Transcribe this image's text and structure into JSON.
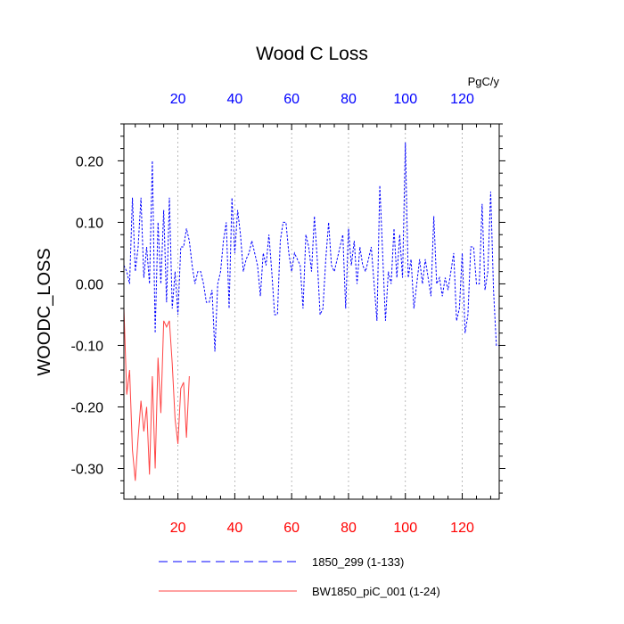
{
  "chart_data": {
    "type": "line",
    "title": "Wood C Loss",
    "ylabel": "WOODC_LOSS",
    "units": "PgC/y",
    "xlim": [
      1,
      133
    ],
    "ylim": [
      -0.35,
      0.26
    ],
    "yticks": [
      {
        "value": 0.2,
        "label": "0.20"
      },
      {
        "value": 0.1,
        "label": "0.10"
      },
      {
        "value": 0.0,
        "label": "0.00"
      },
      {
        "value": -0.1,
        "label": "-0.10"
      },
      {
        "value": -0.2,
        "label": "-0.20"
      },
      {
        "value": -0.3,
        "label": "-0.30"
      }
    ],
    "xticks": [
      {
        "value": 20,
        "label": "20"
      },
      {
        "value": 40,
        "label": "40"
      },
      {
        "value": 60,
        "label": "60"
      },
      {
        "value": 80,
        "label": "80"
      },
      {
        "value": 100,
        "label": "100"
      },
      {
        "value": 120,
        "label": "120"
      }
    ],
    "bottom_axis_color": "#ff0000",
    "top_axis_color": "#0000ff",
    "grid": "vertical dotted",
    "series": [
      {
        "name": "1850_299 (1-133)",
        "color": "#0000ff",
        "dash": "dashed",
        "x_start": 1,
        "values": [
          0.03,
          0.02,
          0.0,
          0.14,
          0.02,
          0.06,
          0.14,
          0.01,
          0.06,
          0.0,
          0.2,
          -0.08,
          0.1,
          0.0,
          0.12,
          -0.03,
          0.14,
          -0.04,
          0.02,
          -0.05,
          0.06,
          0.06,
          0.09,
          0.07,
          0.03,
          0.0,
          0.02,
          0.02,
          0.0,
          -0.03,
          -0.03,
          -0.01,
          -0.11,
          0.0,
          0.02,
          0.07,
          0.1,
          -0.04,
          0.14,
          0.05,
          0.12,
          0.08,
          0.02,
          0.04,
          0.05,
          0.07,
          0.05,
          0.03,
          -0.02,
          0.05,
          0.03,
          0.08,
          0.02,
          -0.05,
          -0.05,
          0.07,
          0.1,
          0.1,
          0.05,
          0.02,
          0.05,
          0.04,
          0.03,
          -0.04,
          0.08,
          0.06,
          0.02,
          0.11,
          0.04,
          -0.05,
          -0.04,
          0.04,
          0.1,
          0.03,
          0.02,
          0.04,
          0.06,
          0.08,
          -0.04,
          0.09,
          0.03,
          0.07,
          0.0,
          0.06,
          0.03,
          0.02,
          0.04,
          0.06,
          0.0,
          -0.06,
          0.16,
          0.05,
          -0.06,
          0.02,
          0.0,
          0.09,
          0.01,
          0.08,
          0.01,
          0.23,
          0.01,
          0.04,
          -0.04,
          0.0,
          0.04,
          0.0,
          0.04,
          0.01,
          -0.02,
          0.11,
          0.0,
          0.01,
          -0.02,
          0.01,
          -0.01,
          0.02,
          0.05,
          -0.06,
          -0.04,
          0.05,
          -0.08,
          -0.05,
          0.06,
          0.06,
          0.0,
          0.0,
          0.13,
          -0.01,
          0.02,
          0.15,
          -0.01,
          -0.1,
          -0.1
        ]
      },
      {
        "name": "BW1850_piC_001 (1-24)",
        "color": "#ff4444",
        "dash": "solid",
        "x_start": 1,
        "values": [
          -0.04,
          -0.18,
          -0.14,
          -0.27,
          -0.32,
          -0.25,
          -0.19,
          -0.24,
          -0.2,
          -0.31,
          -0.15,
          -0.3,
          -0.12,
          -0.21,
          -0.06,
          -0.07,
          -0.06,
          -0.13,
          -0.22,
          -0.26,
          -0.17,
          -0.16,
          -0.25,
          -0.15
        ]
      }
    ]
  }
}
